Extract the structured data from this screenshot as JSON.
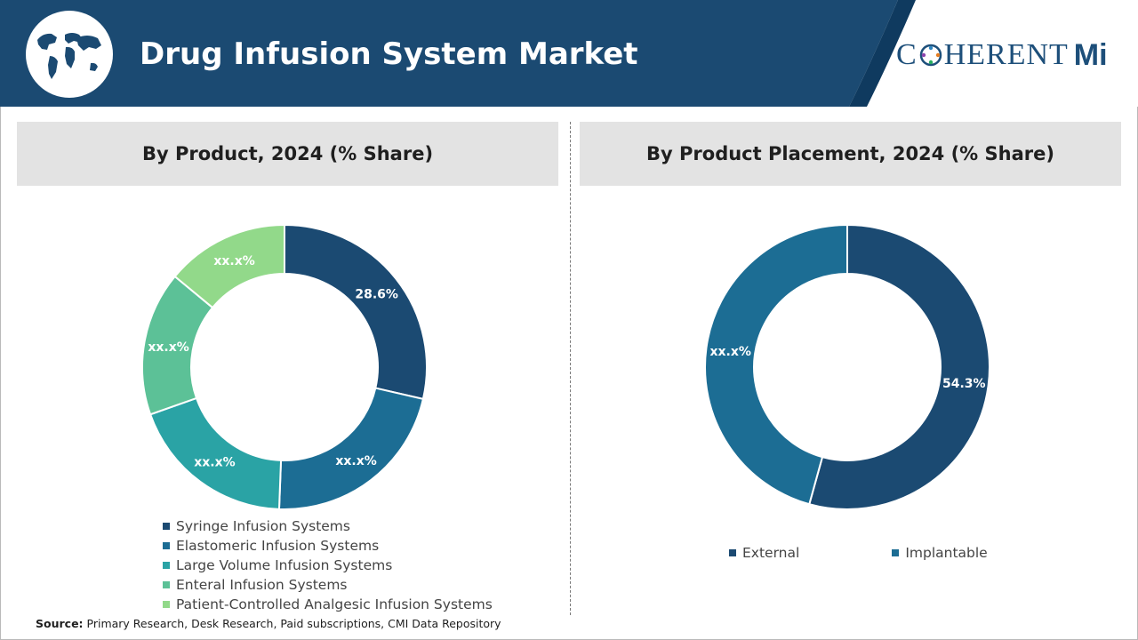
{
  "header": {
    "title": "Drug Infusion System Market",
    "logo": {
      "left": "C",
      "right": "HERENT",
      "mark": "Mi"
    },
    "colors": {
      "banner": "#1b4a72",
      "accent": "#0f3a5f"
    }
  },
  "source": {
    "label": "Source:",
    "text": " Primary Research, Desk Research, Paid subscriptions, CMI Data Repository"
  },
  "chart_data": [
    {
      "type": "pie",
      "variant": "donut",
      "title": "By Product, 2024 (% Share)",
      "categories": [
        "Syringe Infusion Systems",
        "Elastomeric Infusion Systems",
        "Large Volume Infusion Systems",
        "Enteral Infusion Systems",
        "Patient-Controlled Analgesic Infusion Systems"
      ],
      "values": [
        28.6,
        22.0,
        19.0,
        16.4,
        14.0
      ],
      "labels": [
        "28.6%",
        "xx.x%",
        "xx.x%",
        "xx.x%",
        "xx.x%"
      ],
      "colors": [
        "#1b4a72",
        "#1c6d94",
        "#2aa3a5",
        "#5cc197",
        "#92d98a"
      ],
      "legend": "bottom"
    },
    {
      "type": "pie",
      "variant": "donut",
      "title": "By Product Placement, 2024 (% Share)",
      "categories": [
        "External",
        "Implantable"
      ],
      "values": [
        54.3,
        45.7
      ],
      "labels": [
        "54.3%",
        "xx.x%"
      ],
      "colors": [
        "#1b4a72",
        "#1c6d94"
      ],
      "legend": "bottom"
    }
  ]
}
